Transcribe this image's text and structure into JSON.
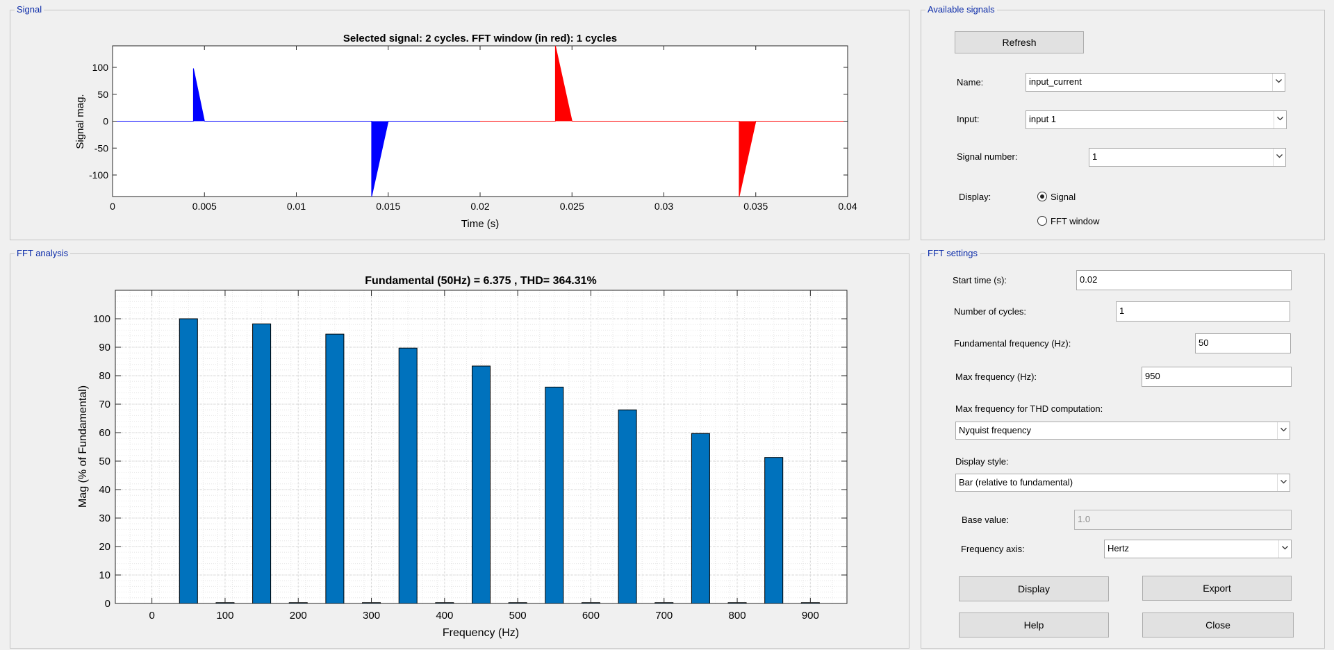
{
  "panels": {
    "signal": "Signal",
    "fft_analysis": "FFT analysis",
    "available_signals": "Available signals",
    "fft_settings": "FFT settings"
  },
  "signal_plot": {
    "title": "Selected signal: 2 cycles. FFT window (in red): 1 cycles",
    "xlabel": "Time (s)",
    "ylabel": "Signal mag.",
    "x_ticks": [
      "0",
      "0.005",
      "0.01",
      "0.015",
      "0.02",
      "0.025",
      "0.03",
      "0.035",
      "0.04"
    ],
    "y_ticks": [
      "100",
      "50",
      "0",
      "-50",
      "-100"
    ],
    "colors": {
      "full_signal": "#0000ff",
      "fft_window": "#ff0000"
    }
  },
  "fft_plot": {
    "title": "Fundamental (50Hz) = 6.375 , THD= 364.31%",
    "xlabel": "Frequency (Hz)",
    "ylabel": "Mag (% of Fundamental)",
    "x_ticks": [
      "0",
      "100",
      "200",
      "300",
      "400",
      "500",
      "600",
      "700",
      "800",
      "900"
    ],
    "y_ticks": [
      "0",
      "10",
      "20",
      "30",
      "40",
      "50",
      "60",
      "70",
      "80",
      "90",
      "100"
    ],
    "bar_color": "#0072bd"
  },
  "chart_data": [
    {
      "type": "line",
      "title": "Selected signal: 2 cycles. FFT window (in red): 1 cycles",
      "xlabel": "Time (s)",
      "ylabel": "Signal mag.",
      "xlim": [
        0,
        0.04
      ],
      "ylim": [
        -140,
        140
      ],
      "grid": false,
      "series": [
        {
          "color": "#0000ff",
          "x": [
            0,
            0.0044,
            0.0044,
            0.005,
            0.0141,
            0.0141,
            0.015,
            0.02
          ],
          "y": [
            0,
            0,
            98,
            0,
            0,
            -140,
            0,
            0
          ]
        },
        {
          "color": "#ff0000",
          "x": [
            0.02,
            0.0241,
            0.0241,
            0.025,
            0.0341,
            0.0341,
            0.035,
            0.04
          ],
          "y": [
            0,
            0,
            140,
            0,
            0,
            -140,
            0,
            0
          ]
        }
      ]
    },
    {
      "type": "bar",
      "title": "Fundamental (50Hz) = 6.375 , THD= 364.31%",
      "xlabel": "Frequency (Hz)",
      "ylabel": "Mag (% of Fundamental)",
      "xlim": [
        -50,
        950
      ],
      "ylim": [
        0,
        110
      ],
      "grid": true,
      "x": [
        0,
        50,
        100,
        150,
        200,
        250,
        300,
        350,
        400,
        450,
        500,
        550,
        600,
        650,
        700,
        750,
        800,
        850,
        900
      ],
      "values": [
        0,
        100,
        0.3,
        98.2,
        0.3,
        94.6,
        0.3,
        89.7,
        0.3,
        83.4,
        0.3,
        76.0,
        0.3,
        68.0,
        0.3,
        59.7,
        0.3,
        51.3,
        0.3
      ]
    }
  ],
  "available_signals": {
    "refresh_label": "Refresh",
    "name_label": "Name:",
    "name_value": "input_current",
    "input_label": "Input:",
    "input_value": "input 1",
    "signal_number_label": "Signal number:",
    "signal_number_value": "1",
    "display_label": "Display:",
    "radio_signal": "Signal",
    "radio_fft_window": "FFT window",
    "selected": "Signal"
  },
  "fft_settings": {
    "start_time_label": "Start time (s):",
    "start_time_value": "0.02",
    "num_cycles_label": "Number of cycles:",
    "num_cycles_value": "1",
    "fund_freq_label": "Fundamental frequency (Hz):",
    "fund_freq_value": "50",
    "max_freq_label": "Max frequency (Hz):",
    "max_freq_value": "950",
    "thd_label": "Max frequency for THD computation:",
    "thd_value": "Nyquist frequency",
    "display_style_label": "Display style:",
    "display_style_value": "Bar (relative to fundamental)",
    "base_value_label": "Base value:",
    "base_value_value": "1.0",
    "freq_axis_label": "Frequency axis:",
    "freq_axis_value": "Hertz",
    "display_btn": "Display",
    "export_btn": "Export",
    "help_btn": "Help",
    "close_btn": "Close"
  }
}
